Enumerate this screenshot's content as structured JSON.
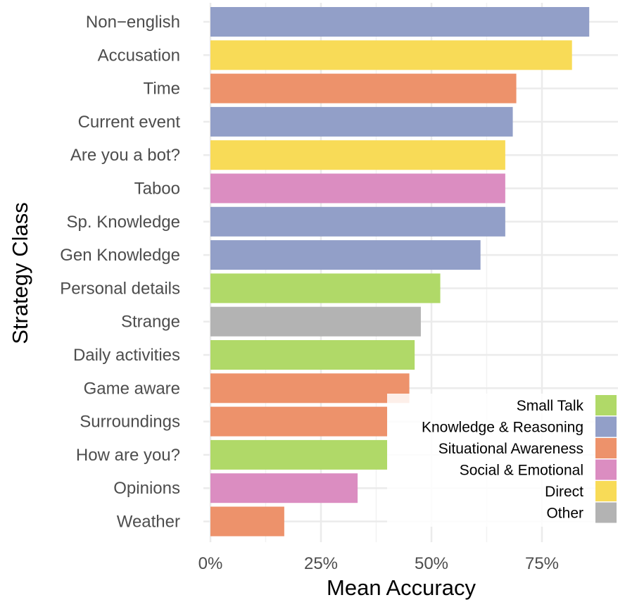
{
  "chart_data": {
    "type": "bar",
    "orientation": "horizontal",
    "xlabel": "Mean Accuracy",
    "ylabel": "Strategy Class",
    "xlim": [
      0,
      0.9
    ],
    "xticks": [
      {
        "value": 0,
        "label": "0%"
      },
      {
        "value": 0.25,
        "label": "25%"
      },
      {
        "value": 0.5,
        "label": "50%"
      },
      {
        "value": 0.75,
        "label": "75%"
      }
    ],
    "grid": true,
    "legend_position": "bottom-right",
    "legend": [
      {
        "name": "Small Talk",
        "color": "#b0d968"
      },
      {
        "name": "Knowledge & Reasoning",
        "color": "#929fc8"
      },
      {
        "name": "Situational Awareness",
        "color": "#ed926b"
      },
      {
        "name": "Social & Emotional",
        "color": "#db8dc1"
      },
      {
        "name": "Direct",
        "color": "#f8db57"
      },
      {
        "name": "Other",
        "color": "#b3b3b3"
      }
    ],
    "bars": [
      {
        "category": "Non−english",
        "value": 0.857,
        "group": "Knowledge & Reasoning"
      },
      {
        "category": "Accusation",
        "value": 0.818,
        "group": "Direct"
      },
      {
        "category": "Time",
        "value": 0.692,
        "group": "Situational Awareness"
      },
      {
        "category": "Current event",
        "value": 0.684,
        "group": "Knowledge & Reasoning"
      },
      {
        "category": "Are you a bot?",
        "value": 0.667,
        "group": "Direct"
      },
      {
        "category": "Taboo",
        "value": 0.667,
        "group": "Social & Emotional"
      },
      {
        "category": "Sp. Knowledge",
        "value": 0.667,
        "group": "Knowledge & Reasoning"
      },
      {
        "category": "Gen Knowledge",
        "value": 0.611,
        "group": "Knowledge & Reasoning"
      },
      {
        "category": "Personal details",
        "value": 0.52,
        "group": "Small Talk"
      },
      {
        "category": "Strange",
        "value": 0.476,
        "group": "Other"
      },
      {
        "category": "Daily activities",
        "value": 0.462,
        "group": "Small Talk"
      },
      {
        "category": "Game aware",
        "value": 0.45,
        "group": "Situational Awareness"
      },
      {
        "category": "Surroundings",
        "value": 0.4,
        "group": "Situational Awareness"
      },
      {
        "category": "How are you?",
        "value": 0.4,
        "group": "Small Talk"
      },
      {
        "category": "Opinions",
        "value": 0.333,
        "group": "Social & Emotional"
      },
      {
        "category": "Weather",
        "value": 0.167,
        "group": "Situational Awareness"
      }
    ]
  }
}
